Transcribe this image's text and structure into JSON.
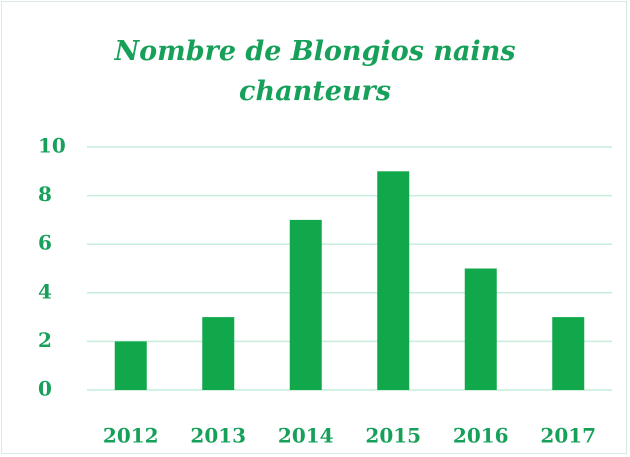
{
  "chart_data": {
    "type": "bar",
    "title": "Nombre de Blongios nains chanteurs",
    "categories": [
      "2012",
      "2013",
      "2014",
      "2015",
      "2016",
      "2017"
    ],
    "values": [
      2,
      3,
      7,
      9,
      5,
      3
    ],
    "color": "#10a84b",
    "ylim": [
      0,
      10
    ],
    "yticks": [
      0,
      2,
      4,
      6,
      8,
      10
    ],
    "grid": true
  }
}
